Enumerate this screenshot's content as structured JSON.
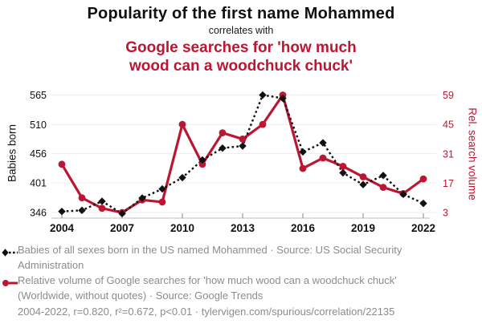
{
  "header": {
    "title": "Popularity of the first name Mohammed",
    "subtitle": "correlates with",
    "red_title_line1": "Google searches for 'how much",
    "red_title_line2": "wood can a woodchuck chuck'"
  },
  "colors": {
    "red": "#bb1733",
    "black": "#111111",
    "gray_text": "#8c8c8c",
    "grid": "#efefef",
    "axis_line": "#c9c9c9",
    "tick": "#999999"
  },
  "chart_data": {
    "type": "line",
    "x": [
      2004,
      2005,
      2006,
      2007,
      2008,
      2009,
      2010,
      2011,
      2012,
      2013,
      2014,
      2015,
      2016,
      2017,
      2018,
      2019,
      2020,
      2021,
      2022
    ],
    "x_tick_labels": [
      "2004",
      "2007",
      "2010",
      "2013",
      "2016",
      "2019",
      "2022"
    ],
    "series": [
      {
        "name": "Babies of all sexes born in the US named Mohammed",
        "axis": "left",
        "style": "dashed-diamond",
        "values": [
          348,
          350,
          367,
          344,
          373,
          390,
          411,
          444,
          466,
          470,
          565,
          559,
          459,
          476,
          420,
          398,
          415,
          380,
          363
        ]
      },
      {
        "name": "Relative volume of Google searches for 'how much wood can a woodchuck chuck'",
        "axis": "right",
        "style": "solid-circle",
        "values": [
          26,
          10,
          5,
          3,
          9,
          8,
          45,
          26,
          41,
          38,
          45,
          59,
          24,
          29,
          25,
          20,
          15,
          12,
          19
        ]
      }
    ],
    "left_axis": {
      "label": "Babies born",
      "ticks": [
        346,
        401,
        456,
        510,
        565
      ],
      "min": 346,
      "max": 565
    },
    "right_axis": {
      "label": "Rel. search volume",
      "ticks": [
        3,
        17,
        31,
        45,
        59
      ],
      "min": 3,
      "max": 59
    },
    "grid": "horizontal-only",
    "legend_position": "bottom-left"
  },
  "legend": [
    {
      "text": "Babies of all sexes born in the US named Mohammed · Source: US Social Security Administration"
    },
    {
      "text": "Relative volume of Google searches for 'how much wood can a woodchuck chuck' (Worldwide, without quotes) · Source: Google Trends"
    }
  ],
  "footer": "2004-2022, r=0.820, r²=0.672, p<0.01 · tylervigen.com/spurious/correlation/22135"
}
